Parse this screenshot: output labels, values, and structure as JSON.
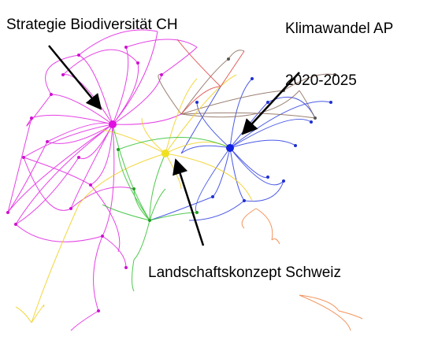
{
  "nodes": [
    {
      "label": "Strategie Biodiversität CH"
    },
    {
      "label": [
        "Klimawandel AP",
        "2020-2025"
      ]
    },
    {
      "label": "Landschaftskonzept Schweiz"
    }
  ]
}
